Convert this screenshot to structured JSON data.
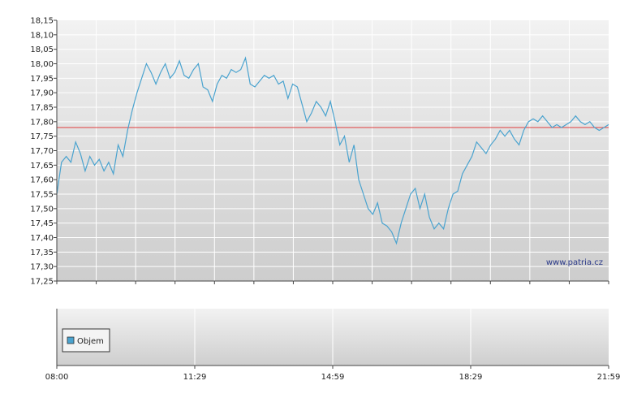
{
  "chart_data": [
    {
      "type": "line",
      "title": "",
      "xlabel": "",
      "ylabel": "",
      "ylim": [
        17.25,
        18.15
      ],
      "y_ticks": [
        "18,15",
        "18,10",
        "18,05",
        "18,00",
        "17,95",
        "17,90",
        "17,85",
        "17,80",
        "17,75",
        "17,70",
        "17,65",
        "17,60",
        "17,55",
        "17,50",
        "17,45",
        "17,40",
        "17,35",
        "17,30",
        "17,25"
      ],
      "x_range": [
        "08:00",
        "21:59"
      ],
      "x_ticks": [
        "08:00",
        "11:29",
        "14:59",
        "18:29",
        "21:59"
      ],
      "grid": true,
      "reference_line": 17.78,
      "series": [
        {
          "values": [
            17.55,
            17.66,
            17.68,
            17.66,
            17.73,
            17.69,
            17.63,
            17.68,
            17.65,
            17.67,
            17.63,
            17.66,
            17.62,
            17.72,
            17.68,
            17.77,
            17.84,
            17.9,
            17.95,
            18.0,
            17.97,
            17.93,
            17.97,
            18.0,
            17.95,
            17.97,
            18.01,
            17.96,
            17.95,
            17.98,
            18.0,
            17.92,
            17.91,
            17.87,
            17.93,
            17.96,
            17.95,
            17.98,
            17.97,
            17.98,
            18.02,
            17.93,
            17.92,
            17.94,
            17.96,
            17.95,
            17.96,
            17.93,
            17.94,
            17.88,
            17.93,
            17.92,
            17.86,
            17.8,
            17.83,
            17.87,
            17.85,
            17.82,
            17.87,
            17.8,
            17.72,
            17.75,
            17.66,
            17.72,
            17.6,
            17.55,
            17.5,
            17.48,
            17.52,
            17.45,
            17.44,
            17.42,
            17.38,
            17.45,
            17.5,
            17.55,
            17.57,
            17.5,
            17.55,
            17.47,
            17.43,
            17.45,
            17.43,
            17.5,
            17.55,
            17.56,
            17.62,
            17.65,
            17.68,
            17.73,
            17.71,
            17.69,
            17.72,
            17.74,
            17.77,
            17.75,
            17.77,
            17.74,
            17.72,
            17.77,
            17.8,
            17.81,
            17.8,
            17.82,
            17.8,
            17.78,
            17.79,
            17.78,
            17.79,
            17.8,
            17.82,
            17.8,
            17.79,
            17.8,
            17.78,
            17.77,
            17.78,
            17.79
          ]
        }
      ]
    },
    {
      "type": "bar",
      "title": "",
      "legend": [
        "Objem"
      ],
      "legend_position": "top-left",
      "x_ticks": [
        "08:00",
        "11:29",
        "14:59",
        "18:29",
        "21:59"
      ],
      "series": []
    }
  ],
  "watermark": "www.patria.cz",
  "colors": {
    "line": "#4aa3cf",
    "reference": "#e03c3c",
    "grid": "#ffffff",
    "plot_top": "#f2f2f2",
    "plot_bottom": "#cdcdcd",
    "legend_swatch": "#4aa3cf"
  }
}
